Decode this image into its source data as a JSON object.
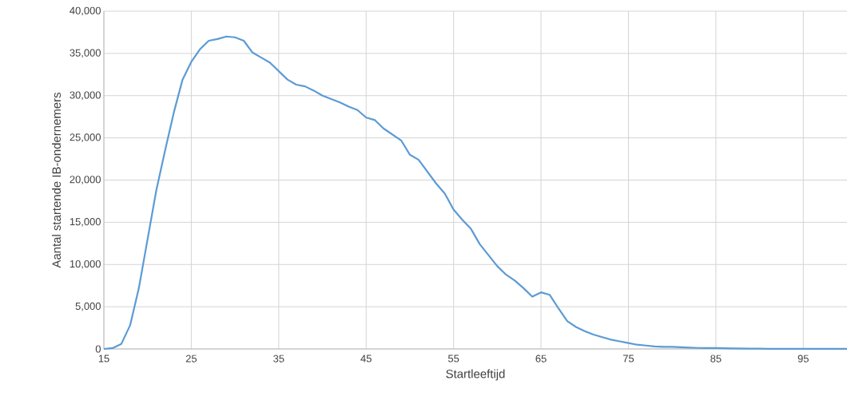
{
  "chart_data": {
    "type": "line",
    "xlabel": "Startleeftijd",
    "ylabel": "Aantal startende IB-ondernemers",
    "xlim": [
      15,
      100
    ],
    "ylim": [
      0,
      40000
    ],
    "xticks": [
      15,
      25,
      35,
      45,
      55,
      65,
      75,
      85,
      95
    ],
    "yticks": [
      {
        "value": 0,
        "label": "0"
      },
      {
        "value": 5000,
        "label": "5,000"
      },
      {
        "value": 10000,
        "label": "10,000"
      },
      {
        "value": 15000,
        "label": "15,000"
      },
      {
        "value": 20000,
        "label": "20,000"
      },
      {
        "value": 25000,
        "label": "25,000"
      },
      {
        "value": 30000,
        "label": "30,000"
      },
      {
        "value": 35000,
        "label": "35,000"
      },
      {
        "value": 40000,
        "label": "40,000"
      }
    ],
    "grid": true,
    "marker": "none",
    "line_style": "solid",
    "x": [
      15,
      16,
      17,
      18,
      19,
      20,
      21,
      22,
      23,
      24,
      25,
      26,
      27,
      28,
      29,
      30,
      31,
      32,
      33,
      34,
      35,
      36,
      37,
      38,
      39,
      40,
      41,
      42,
      43,
      44,
      45,
      46,
      47,
      48,
      49,
      50,
      51,
      52,
      53,
      54,
      55,
      56,
      57,
      58,
      59,
      60,
      61,
      62,
      63,
      64,
      65,
      66,
      67,
      68,
      69,
      70,
      71,
      72,
      73,
      74,
      75,
      76,
      77,
      78,
      79,
      80,
      81,
      82,
      83,
      84,
      85,
      86,
      87,
      88,
      89,
      90,
      91,
      92,
      93,
      94,
      95,
      96,
      97,
      98,
      99,
      100
    ],
    "series": [
      {
        "color": "#5b9bd5",
        "values": [
          0,
          100,
          600,
          2800,
          7200,
          13000,
          18800,
          23500,
          28000,
          31900,
          34000,
          35500,
          36500,
          36700,
          37000,
          36900,
          36500,
          35100,
          34500,
          33900,
          32900,
          31900,
          31300,
          31100,
          30600,
          30000,
          29600,
          29200,
          28700,
          28300,
          27400,
          27100,
          26100,
          25400,
          24700,
          23000,
          22400,
          21000,
          19600,
          18400,
          16500,
          15300,
          14200,
          12400,
          11100,
          9800,
          8800,
          8100,
          7200,
          6200,
          6700,
          6400,
          4800,
          3300,
          2600,
          2100,
          1700,
          1400,
          1100,
          900,
          700,
          500,
          400,
          300,
          250,
          250,
          200,
          150,
          120,
          100,
          100,
          80,
          60,
          50,
          40,
          30,
          20,
          20,
          20,
          10,
          10,
          10,
          10,
          10,
          10,
          10
        ]
      }
    ]
  }
}
